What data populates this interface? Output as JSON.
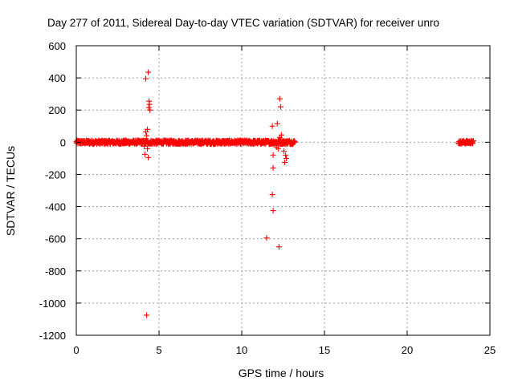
{
  "chart_data": {
    "type": "scatter",
    "title": "Day 277 of 2011, Sidereal Day-to-day VTEC variation (SDTVAR) for receiver unro",
    "xlabel": "GPS time / hours",
    "ylabel": "SDTVAR / TECUs",
    "xlim": [
      0,
      25
    ],
    "ylim": [
      -1200,
      600
    ],
    "xticks": [
      0,
      5,
      10,
      15,
      20,
      25
    ],
    "yticks": [
      600,
      400,
      200,
      0,
      -200,
      -400,
      -600,
      -800,
      -1000,
      -1200
    ],
    "grid": true,
    "marker": "plus",
    "color": "#ff0000",
    "series": [
      {
        "name": "SDTVAR",
        "dense_bands": [
          {
            "x_start": 0.0,
            "x_end": 13.2,
            "y_center": 0,
            "y_spread": 12
          },
          {
            "x_start": 23.1,
            "x_end": 24.0,
            "y_center": 0,
            "y_spread": 10
          }
        ],
        "points": [
          [
            4.2,
            395
          ],
          [
            4.35,
            435
          ],
          [
            4.4,
            255
          ],
          [
            4.42,
            235
          ],
          [
            4.38,
            215
          ],
          [
            4.45,
            200
          ],
          [
            4.3,
            80
          ],
          [
            4.2,
            65
          ],
          [
            4.25,
            40
          ],
          [
            4.1,
            -25
          ],
          [
            4.3,
            -40
          ],
          [
            4.15,
            -75
          ],
          [
            4.35,
            -95
          ],
          [
            4.25,
            -1075
          ],
          [
            12.3,
            270
          ],
          [
            12.35,
            220
          ],
          [
            12.15,
            115
          ],
          [
            11.85,
            100
          ],
          [
            12.4,
            45
          ],
          [
            12.3,
            30
          ],
          [
            12.2,
            -40
          ],
          [
            12.1,
            -30
          ],
          [
            12.55,
            -55
          ],
          [
            11.9,
            -80
          ],
          [
            12.65,
            -80
          ],
          [
            12.7,
            -100
          ],
          [
            12.6,
            -125
          ],
          [
            11.9,
            -160
          ],
          [
            11.85,
            -325
          ],
          [
            11.9,
            -425
          ],
          [
            11.5,
            -595
          ],
          [
            12.25,
            -650
          ]
        ]
      }
    ]
  }
}
